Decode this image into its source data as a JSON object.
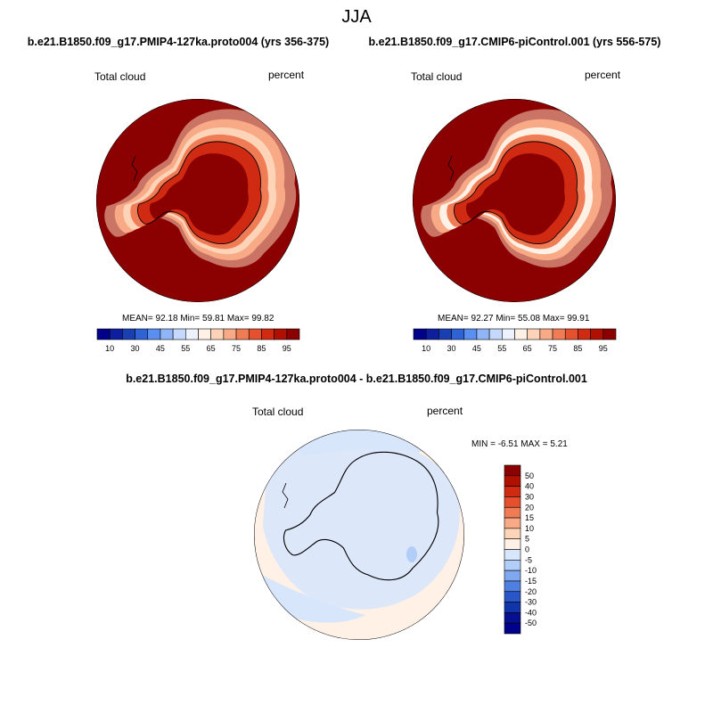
{
  "figure": {
    "title": "JJA",
    "colors": {
      "land_outline": "#000000",
      "background": "#ffffff"
    }
  },
  "panels": [
    {
      "title": "b.e21.B1850.f09_g17.PMIP4-127ka.proto004 (yrs 356-375)",
      "variable": "Total cloud",
      "units": "percent",
      "stats_text": "MEAN=  92.18  Min=  59.81  Max=  99.82",
      "mean": 92.18,
      "min": 59.81,
      "max": 99.82
    },
    {
      "title": "b.e21.B1850.f09_g17.CMIP6-piControl.001 (yrs 556-575)",
      "variable": "Total cloud",
      "units": "percent",
      "stats_text": "MEAN=  92.27  Min=  55.08  Max=  99.91",
      "mean": 92.27,
      "min": 55.08,
      "max": 99.91
    },
    {
      "title": "b.e21.B1850.f09_g17.PMIP4-127ka.proto004 - b.e21.B1850.f09_g17.CMIP6-piControl.001",
      "variable": "Total cloud",
      "units": "percent",
      "stats_text": "MIN =  -6.51 MAX =   5.21",
      "min": -6.51,
      "max": 5.21
    }
  ],
  "colorbar_abs": {
    "labels": [
      "10",
      "30",
      "45",
      "55",
      "65",
      "75",
      "85",
      "95"
    ],
    "colors": [
      "#00008b",
      "#0d1f9e",
      "#1a3fb3",
      "#2e63d6",
      "#5a8ef0",
      "#8fb5f7",
      "#c4d9fb",
      "#ecf3ff",
      "#fff1e6",
      "#fdd4b8",
      "#f7aa85",
      "#f07c56",
      "#e5502f",
      "#d12a12",
      "#b01000",
      "#8b0000"
    ]
  },
  "colorbar_diff": {
    "labels": [
      "50",
      "40",
      "30",
      "20",
      "15",
      "10",
      "5",
      "0",
      "-5",
      "-10",
      "-15",
      "-20",
      "-30",
      "-40",
      "-50"
    ],
    "colors": [
      "#8b0000",
      "#b01000",
      "#d12a12",
      "#e5502f",
      "#f07c56",
      "#f7aa85",
      "#fdd4b8",
      "#fff1e6",
      "#d8e6fb",
      "#b2cdf7",
      "#7fa8f0",
      "#4f7fe0",
      "#2a57c8",
      "#1234aa",
      "#050f90",
      "#00008b"
    ]
  }
}
